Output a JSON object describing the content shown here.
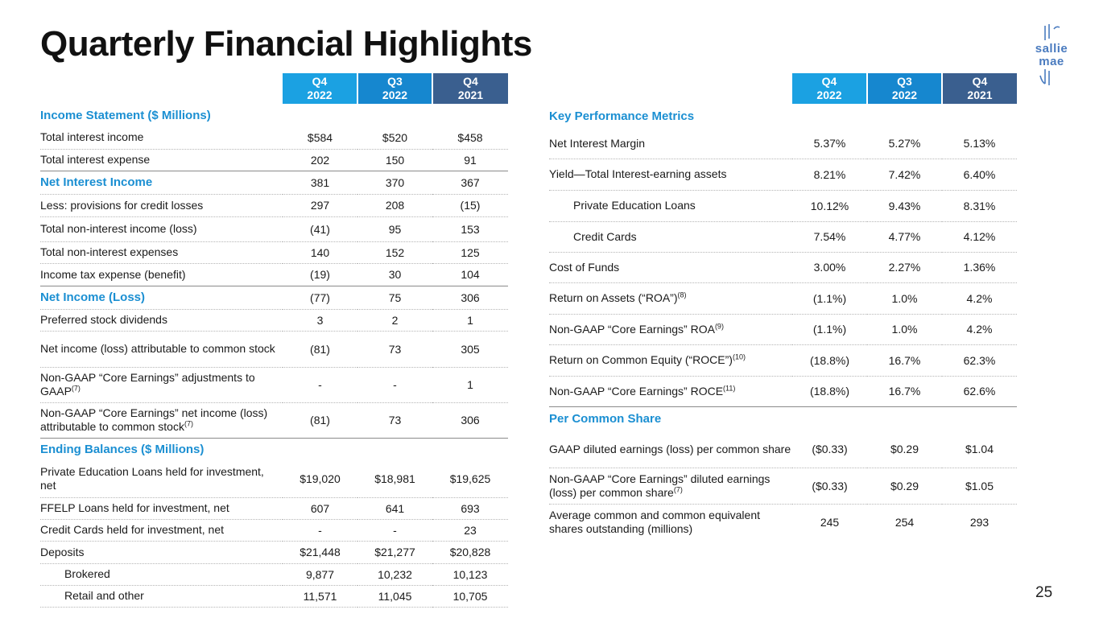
{
  "title": "Quarterly Financial Highlights",
  "logo": {
    "line1": "sallie",
    "line2": "mae"
  },
  "page_number": "25",
  "columns": [
    {
      "line1": "Q4",
      "line2": "2022"
    },
    {
      "line1": "Q3",
      "line2": "2022"
    },
    {
      "line1": "Q4",
      "line2": "2021"
    }
  ],
  "left_rows": [
    {
      "type": "section",
      "label": "Income Statement ($ Millions)"
    },
    {
      "type": "row",
      "label": "Total interest income",
      "values": [
        "$584",
        "$520",
        "$458"
      ]
    },
    {
      "type": "row",
      "label": "Total interest expense",
      "values": [
        "202",
        "150",
        "91"
      ],
      "solid": true
    },
    {
      "type": "highlight",
      "label": "Net Interest Income",
      "values": [
        "381",
        "370",
        "367"
      ]
    },
    {
      "type": "row",
      "label": "Less: provisions for credit losses",
      "values": [
        "297",
        "208",
        "(15)"
      ]
    },
    {
      "type": "row",
      "label": "Total non-interest income (loss)",
      "values": [
        "(41)",
        "95",
        "153"
      ]
    },
    {
      "type": "row",
      "label": "Total non-interest expenses",
      "values": [
        "140",
        "152",
        "125"
      ]
    },
    {
      "type": "row",
      "label": "Income tax expense (benefit)",
      "values": [
        "(19)",
        "30",
        "104"
      ],
      "solid": true
    },
    {
      "type": "highlight",
      "label": "Net Income (Loss)",
      "values": [
        "(77)",
        "75",
        "306"
      ]
    },
    {
      "type": "row",
      "label": "Preferred stock dividends",
      "values": [
        "3",
        "2",
        "1"
      ]
    },
    {
      "type": "row",
      "label": "Net income (loss) attributable to common stock",
      "values": [
        "(81)",
        "73",
        "305"
      ]
    },
    {
      "type": "row",
      "label": "Non-GAAP “Core Earnings” adjustments to GAAP",
      "sup": "(7)",
      "values": [
        "-",
        "-",
        "1"
      ]
    },
    {
      "type": "row",
      "label": "Non-GAAP “Core Earnings” net income (loss) attributable to common stock",
      "sup": "(7)",
      "values": [
        "(81)",
        "73",
        "306"
      ],
      "solid": true
    },
    {
      "type": "section",
      "label": "Ending Balances ($ Millions)"
    },
    {
      "type": "row",
      "label": "Private Education Loans held for investment, net",
      "values": [
        "$19,020",
        "$18,981",
        "$19,625"
      ]
    },
    {
      "type": "row",
      "label": "FFELP Loans held for investment, net",
      "values": [
        "607",
        "641",
        "693"
      ]
    },
    {
      "type": "row",
      "label": "Credit Cards held for investment, net",
      "values": [
        "-",
        "-",
        "23"
      ]
    },
    {
      "type": "row",
      "label": "Deposits",
      "values": [
        "$21,448",
        "$21,277",
        "$20,828"
      ]
    },
    {
      "type": "row",
      "label": "Brokered",
      "indent": true,
      "values": [
        "9,877",
        "10,232",
        "10,123"
      ]
    },
    {
      "type": "row",
      "label": "Retail and other",
      "indent": true,
      "values": [
        "11,571",
        "11,045",
        "10,705"
      ]
    }
  ],
  "right_rows": [
    {
      "type": "section",
      "label": "Key Performance Metrics"
    },
    {
      "type": "row",
      "label": "Net Interest Margin",
      "values": [
        "5.37%",
        "5.27%",
        "5.13%"
      ]
    },
    {
      "type": "row",
      "label": "Yield—Total Interest-earning assets",
      "values": [
        "8.21%",
        "7.42%",
        "6.40%"
      ]
    },
    {
      "type": "row",
      "label": "Private Education Loans",
      "indent": true,
      "values": [
        "10.12%",
        "9.43%",
        "8.31%"
      ]
    },
    {
      "type": "row",
      "label": "Credit Cards",
      "indent": true,
      "values": [
        "7.54%",
        "4.77%",
        "4.12%"
      ]
    },
    {
      "type": "row",
      "label": "Cost of Funds",
      "values": [
        "3.00%",
        "2.27%",
        "1.36%"
      ]
    },
    {
      "type": "row",
      "label": "Return on Assets (“ROA”)",
      "sup": "(8)",
      "values": [
        "(1.1%)",
        "1.0%",
        "4.2%"
      ]
    },
    {
      "type": "row",
      "label": "Non-GAAP “Core Earnings” ROA",
      "sup": "(9)",
      "values": [
        "(1.1%)",
        "1.0%",
        "4.2%"
      ]
    },
    {
      "type": "row",
      "label": "Return on Common Equity (“ROCE”)",
      "sup": "(10)",
      "values": [
        "(18.8%)",
        "16.7%",
        "62.3%"
      ]
    },
    {
      "type": "row",
      "label": "Non-GAAP “Core Earnings” ROCE",
      "sup": "(11)",
      "values": [
        "(18.8%)",
        "16.7%",
        "62.6%"
      ],
      "solid": true
    },
    {
      "type": "section",
      "label": "Per Common Share"
    },
    {
      "type": "row",
      "label": "GAAP diluted earnings (loss) per common share",
      "values": [
        "($0.33)",
        "$0.29",
        "$1.04"
      ]
    },
    {
      "type": "row",
      "label": "Non-GAAP “Core Earnings” diluted earnings (loss) per common share",
      "sup": "(7)",
      "values": [
        "($0.33)",
        "$0.29",
        "$1.05"
      ]
    },
    {
      "type": "row",
      "label": "Average common and common equivalent shares outstanding (millions)",
      "values": [
        "245",
        "254",
        "293"
      ],
      "noborder": true
    }
  ]
}
